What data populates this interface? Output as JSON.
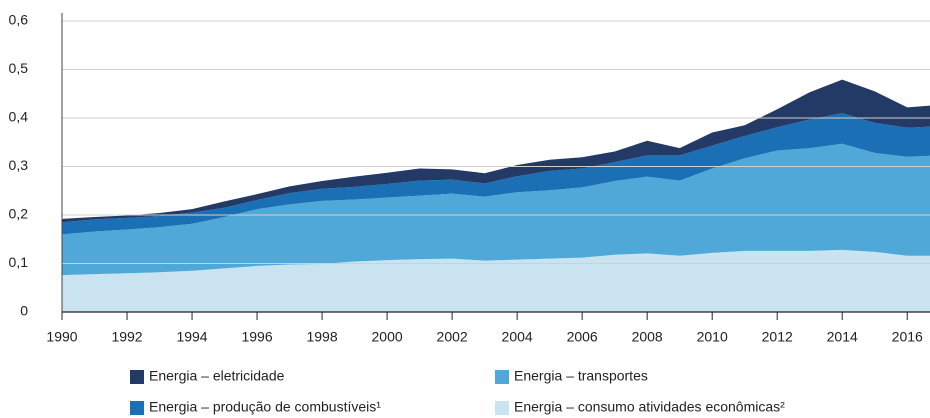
{
  "chart_data": {
    "type": "stacked_area",
    "x": [
      1990,
      1991,
      1992,
      1993,
      1994,
      1995,
      1996,
      1997,
      1998,
      1999,
      2000,
      2001,
      2002,
      2003,
      2004,
      2005,
      2006,
      2007,
      2008,
      2009,
      2010,
      2011,
      2012,
      2013,
      2014,
      2015,
      2016,
      2017
    ],
    "series": [
      {
        "name": "Energia – consumo atividades econômicas²",
        "color": "#c9e3f1",
        "values": [
          0.076,
          0.078,
          0.08,
          0.082,
          0.085,
          0.09,
          0.095,
          0.098,
          0.099,
          0.104,
          0.107,
          0.109,
          0.11,
          0.106,
          0.108,
          0.11,
          0.112,
          0.118,
          0.121,
          0.116,
          0.122,
          0.126,
          0.126,
          0.126,
          0.128,
          0.124,
          0.116,
          0.116
        ]
      },
      {
        "name": "Energia – transportes",
        "color": "#4fa8d8",
        "values": [
          0.084,
          0.088,
          0.09,
          0.093,
          0.097,
          0.106,
          0.117,
          0.124,
          0.13,
          0.128,
          0.129,
          0.131,
          0.134,
          0.132,
          0.139,
          0.141,
          0.145,
          0.152,
          0.158,
          0.155,
          0.174,
          0.191,
          0.207,
          0.212,
          0.219,
          0.204,
          0.204,
          0.207
        ]
      },
      {
        "name": "Energia – produção de combustíveis¹",
        "color": "#1a6fb5",
        "values": [
          0.025,
          0.025,
          0.024,
          0.023,
          0.023,
          0.019,
          0.019,
          0.023,
          0.025,
          0.026,
          0.028,
          0.031,
          0.029,
          0.027,
          0.033,
          0.04,
          0.039,
          0.039,
          0.044,
          0.052,
          0.047,
          0.046,
          0.048,
          0.059,
          0.063,
          0.062,
          0.06,
          0.06
        ]
      },
      {
        "name": "Energia – eletricidade",
        "color": "#233a66",
        "values": [
          0.007,
          0.005,
          0.005,
          0.006,
          0.007,
          0.013,
          0.012,
          0.014,
          0.016,
          0.021,
          0.023,
          0.025,
          0.021,
          0.021,
          0.023,
          0.023,
          0.023,
          0.022,
          0.03,
          0.015,
          0.027,
          0.022,
          0.037,
          0.056,
          0.069,
          0.065,
          0.042,
          0.044
        ]
      }
    ],
    "xlim": [
      1990,
      2016.7
    ],
    "xticks": [
      1990,
      1992,
      1994,
      1996,
      1998,
      2000,
      2002,
      2004,
      2006,
      2008,
      2010,
      2012,
      2014,
      2016
    ],
    "ylim": [
      0,
      0.6
    ],
    "yticks": [
      0,
      {
        "value": 0.1,
        "label": "0,1"
      },
      {
        "value": 0.2,
        "label": "0,2"
      },
      {
        "value": 0.3,
        "label": "0,3"
      },
      {
        "value": 0.4,
        "label": "0,4"
      },
      {
        "value": 0.5,
        "label": "0,5"
      },
      {
        "value": 0.6,
        "label": "0,6"
      }
    ],
    "grid": true
  }
}
